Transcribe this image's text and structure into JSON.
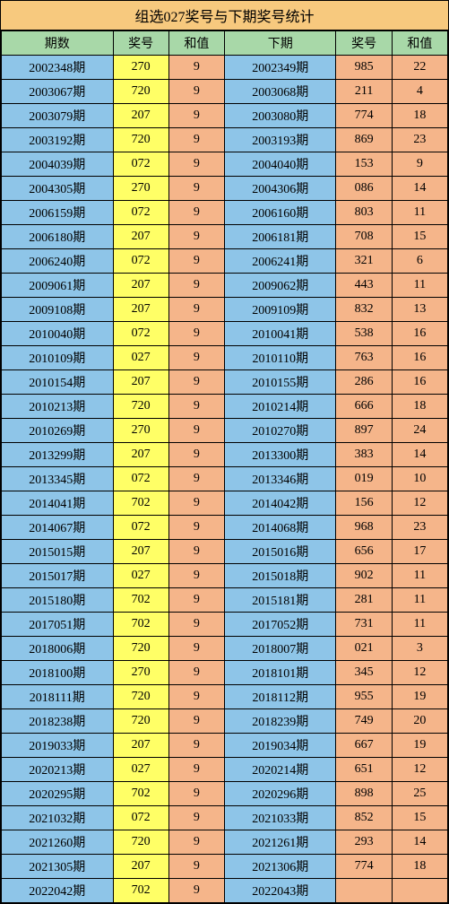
{
  "title": "组选027奖号与下期奖号统计",
  "headers": [
    "期数",
    "奖号",
    "和值",
    "下期",
    "奖号",
    "和值"
  ],
  "colors": {
    "title_bg": "#f7c97e",
    "header_bg": "#a8d8a8",
    "period_bg": "#8ec5e8",
    "yellow_bg": "#ffff66",
    "orange_bg": "#f5b58a",
    "border": "#000000"
  },
  "rows": [
    {
      "p1": "2002348期",
      "n1": "270",
      "s1": "9",
      "p2": "2002349期",
      "n2": "985",
      "s2": "22"
    },
    {
      "p1": "2003067期",
      "n1": "720",
      "s1": "9",
      "p2": "2003068期",
      "n2": "211",
      "s2": "4"
    },
    {
      "p1": "2003079期",
      "n1": "207",
      "s1": "9",
      "p2": "2003080期",
      "n2": "774",
      "s2": "18"
    },
    {
      "p1": "2003192期",
      "n1": "720",
      "s1": "9",
      "p2": "2003193期",
      "n2": "869",
      "s2": "23"
    },
    {
      "p1": "2004039期",
      "n1": "072",
      "s1": "9",
      "p2": "2004040期",
      "n2": "153",
      "s2": "9"
    },
    {
      "p1": "2004305期",
      "n1": "270",
      "s1": "9",
      "p2": "2004306期",
      "n2": "086",
      "s2": "14"
    },
    {
      "p1": "2006159期",
      "n1": "072",
      "s1": "9",
      "p2": "2006160期",
      "n2": "803",
      "s2": "11"
    },
    {
      "p1": "2006180期",
      "n1": "207",
      "s1": "9",
      "p2": "2006181期",
      "n2": "708",
      "s2": "15"
    },
    {
      "p1": "2006240期",
      "n1": "072",
      "s1": "9",
      "p2": "2006241期",
      "n2": "321",
      "s2": "6"
    },
    {
      "p1": "2009061期",
      "n1": "207",
      "s1": "9",
      "p2": "2009062期",
      "n2": "443",
      "s2": "11"
    },
    {
      "p1": "2009108期",
      "n1": "207",
      "s1": "9",
      "p2": "2009109期",
      "n2": "832",
      "s2": "13"
    },
    {
      "p1": "2010040期",
      "n1": "072",
      "s1": "9",
      "p2": "2010041期",
      "n2": "538",
      "s2": "16"
    },
    {
      "p1": "2010109期",
      "n1": "027",
      "s1": "9",
      "p2": "2010110期",
      "n2": "763",
      "s2": "16"
    },
    {
      "p1": "2010154期",
      "n1": "207",
      "s1": "9",
      "p2": "2010155期",
      "n2": "286",
      "s2": "16"
    },
    {
      "p1": "2010213期",
      "n1": "720",
      "s1": "9",
      "p2": "2010214期",
      "n2": "666",
      "s2": "18"
    },
    {
      "p1": "2010269期",
      "n1": "270",
      "s1": "9",
      "p2": "2010270期",
      "n2": "897",
      "s2": "24"
    },
    {
      "p1": "2013299期",
      "n1": "207",
      "s1": "9",
      "p2": "2013300期",
      "n2": "383",
      "s2": "14"
    },
    {
      "p1": "2013345期",
      "n1": "072",
      "s1": "9",
      "p2": "2013346期",
      "n2": "019",
      "s2": "10"
    },
    {
      "p1": "2014041期",
      "n1": "702",
      "s1": "9",
      "p2": "2014042期",
      "n2": "156",
      "s2": "12"
    },
    {
      "p1": "2014067期",
      "n1": "072",
      "s1": "9",
      "p2": "2014068期",
      "n2": "968",
      "s2": "23"
    },
    {
      "p1": "2015015期",
      "n1": "207",
      "s1": "9",
      "p2": "2015016期",
      "n2": "656",
      "s2": "17"
    },
    {
      "p1": "2015017期",
      "n1": "027",
      "s1": "9",
      "p2": "2015018期",
      "n2": "902",
      "s2": "11"
    },
    {
      "p1": "2015180期",
      "n1": "702",
      "s1": "9",
      "p2": "2015181期",
      "n2": "281",
      "s2": "11"
    },
    {
      "p1": "2017051期",
      "n1": "702",
      "s1": "9",
      "p2": "2017052期",
      "n2": "731",
      "s2": "11"
    },
    {
      "p1": "2018006期",
      "n1": "720",
      "s1": "9",
      "p2": "2018007期",
      "n2": "021",
      "s2": "3"
    },
    {
      "p1": "2018100期",
      "n1": "270",
      "s1": "9",
      "p2": "2018101期",
      "n2": "345",
      "s2": "12"
    },
    {
      "p1": "2018111期",
      "n1": "720",
      "s1": "9",
      "p2": "2018112期",
      "n2": "955",
      "s2": "19"
    },
    {
      "p1": "2018238期",
      "n1": "720",
      "s1": "9",
      "p2": "2018239期",
      "n2": "749",
      "s2": "20"
    },
    {
      "p1": "2019033期",
      "n1": "207",
      "s1": "9",
      "p2": "2019034期",
      "n2": "667",
      "s2": "19"
    },
    {
      "p1": "2020213期",
      "n1": "027",
      "s1": "9",
      "p2": "2020214期",
      "n2": "651",
      "s2": "12"
    },
    {
      "p1": "2020295期",
      "n1": "702",
      "s1": "9",
      "p2": "2020296期",
      "n2": "898",
      "s2": "25"
    },
    {
      "p1": "2021032期",
      "n1": "072",
      "s1": "9",
      "p2": "2021033期",
      "n2": "852",
      "s2": "15"
    },
    {
      "p1": "2021260期",
      "n1": "720",
      "s1": "9",
      "p2": "2021261期",
      "n2": "293",
      "s2": "14"
    },
    {
      "p1": "2021305期",
      "n1": "207",
      "s1": "9",
      "p2": "2021306期",
      "n2": "774",
      "s2": "18"
    },
    {
      "p1": "2022042期",
      "n1": "702",
      "s1": "9",
      "p2": "2022043期",
      "n2": "",
      "s2": ""
    }
  ]
}
